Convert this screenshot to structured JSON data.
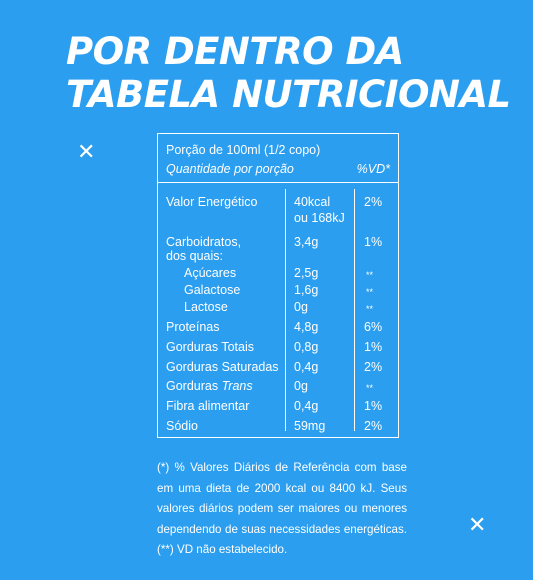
{
  "title": {
    "line1": "POR DENTRO DA",
    "line2": "TABELA NUTRICIONAL"
  },
  "decor": {
    "x_glyph": "✕"
  },
  "table": {
    "portion": "Porção de 100ml (1/2 copo)",
    "quantity_header": "Quantidade por porção",
    "vd_header": "%VD*",
    "rows": [
      {
        "name": "Valor Energético",
        "amount": "40kcal",
        "amount2": "ou 168kJ",
        "vd": "2%"
      },
      {
        "name": "Carboidratos,",
        "name2": "dos quais:",
        "amount": "3,4g",
        "vd": "1%"
      },
      {
        "name": "Açúcares",
        "amount": "2,5g",
        "vd": "**"
      },
      {
        "name": "Galactose",
        "amount": "1,6g",
        "vd": "**"
      },
      {
        "name": "Lactose",
        "amount": "0g",
        "vd": "**"
      },
      {
        "name": "Proteínas",
        "amount": "4,8g",
        "vd": "6%"
      },
      {
        "name": "Gorduras Totais",
        "amount": "0,8g",
        "vd": "1%"
      },
      {
        "name": "Gorduras Saturadas",
        "amount": "0,4g",
        "vd": "2%"
      },
      {
        "name": "Gorduras",
        "name_italic": "Trans",
        "amount": "0g",
        "vd": "**"
      },
      {
        "name": "Fibra alimentar",
        "amount": "0,4g",
        "vd": "1%"
      },
      {
        "name": "Sódio",
        "amount": "59mg",
        "vd": "2%"
      }
    ]
  },
  "footnote": "(*) % Valores Diários de Referência com base em uma dieta de 2000 kcal ou 8400 kJ. Seus valores diários podem ser maiores ou menores dependendo de suas necessidades energéticas. (**) VD não estabelecido."
}
